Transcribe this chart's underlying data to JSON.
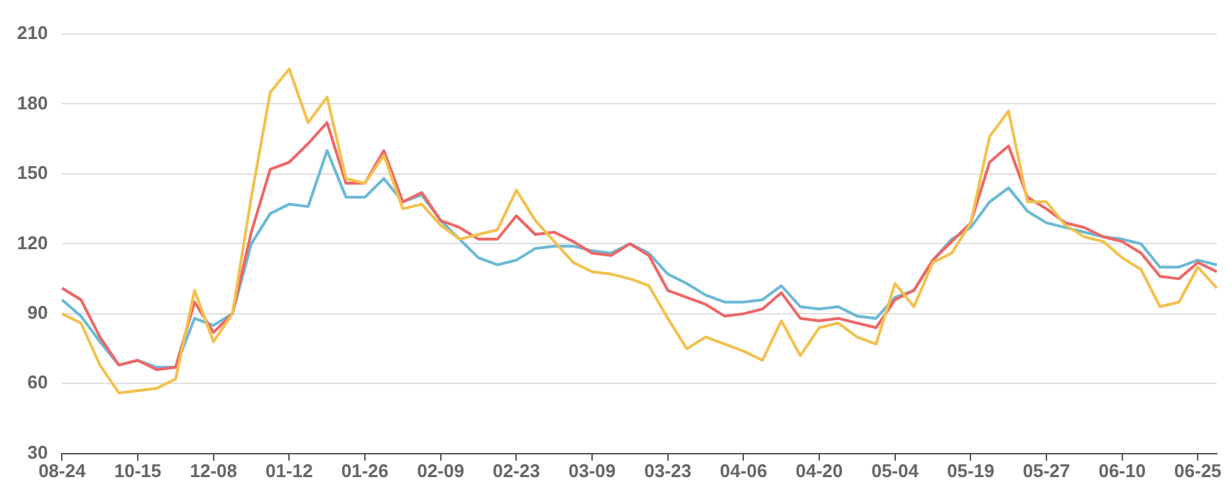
{
  "chart_data": {
    "type": "line",
    "categories": [
      "08-24",
      null,
      null,
      null,
      "10-15",
      null,
      null,
      null,
      "12-08",
      null,
      null,
      null,
      "01-12",
      null,
      null,
      null,
      "01-26",
      null,
      null,
      null,
      "02-09",
      null,
      null,
      null,
      "02-23",
      null,
      null,
      null,
      "03-09",
      null,
      null,
      null,
      "03-23",
      null,
      null,
      null,
      "04-06",
      null,
      null,
      null,
      "04-20",
      null,
      null,
      null,
      "05-04",
      null,
      null,
      null,
      "05-19",
      null,
      null,
      null,
      "05-27",
      null,
      null,
      null,
      "06-10",
      null,
      null,
      null,
      "06-25",
      null
    ],
    "series": [
      {
        "color": "#f2c14e",
        "values": [
          90,
          86,
          68,
          56,
          57,
          58,
          62,
          100,
          78,
          90,
          140,
          185,
          195,
          172,
          183,
          148,
          146,
          158,
          135,
          137,
          128,
          122,
          124,
          126,
          143,
          130,
          121,
          112,
          108,
          107,
          105,
          102,
          88,
          75,
          80,
          77,
          74,
          70,
          87,
          72,
          84,
          86,
          80,
          77,
          103,
          93,
          112,
          116,
          129,
          166,
          177,
          138,
          138,
          128,
          123,
          121,
          114,
          109,
          93,
          95,
          110,
          101
        ]
      },
      {
        "color": "#ee6666",
        "values": [
          101,
          96,
          80,
          68,
          70,
          66,
          67,
          95,
          82,
          90,
          125,
          152,
          155,
          163,
          172,
          146,
          146,
          160,
          138,
          142,
          130,
          127,
          122,
          122,
          132,
          124,
          125,
          121,
          116,
          115,
          120,
          115,
          100,
          97,
          94,
          89,
          90,
          92,
          99,
          88,
          87,
          88,
          86,
          84,
          96,
          100,
          113,
          121,
          129,
          155,
          162,
          140,
          135,
          129,
          127,
          123,
          121,
          116,
          106,
          105,
          112,
          108
        ]
      },
      {
        "color": "#6bb9d6",
        "values": [
          96,
          89,
          78,
          68,
          70,
          67,
          67,
          88,
          85,
          90,
          120,
          133,
          137,
          136,
          160,
          140,
          140,
          148,
          138,
          141,
          130,
          122,
          114,
          111,
          113,
          118,
          119,
          119,
          117,
          116,
          120,
          116,
          107,
          103,
          98,
          95,
          95,
          96,
          102,
          93,
          92,
          93,
          89,
          88,
          97,
          100,
          113,
          122,
          127,
          138,
          144,
          134,
          129,
          127,
          125,
          123,
          122,
          120,
          110,
          110,
          113,
          111
        ]
      }
    ],
    "ylim": [
      30,
      210
    ],
    "yticks": [
      30,
      60,
      90,
      120,
      150,
      180,
      210
    ],
    "grid": "y",
    "marker": "none",
    "line_style": "solid",
    "legend": false
  }
}
